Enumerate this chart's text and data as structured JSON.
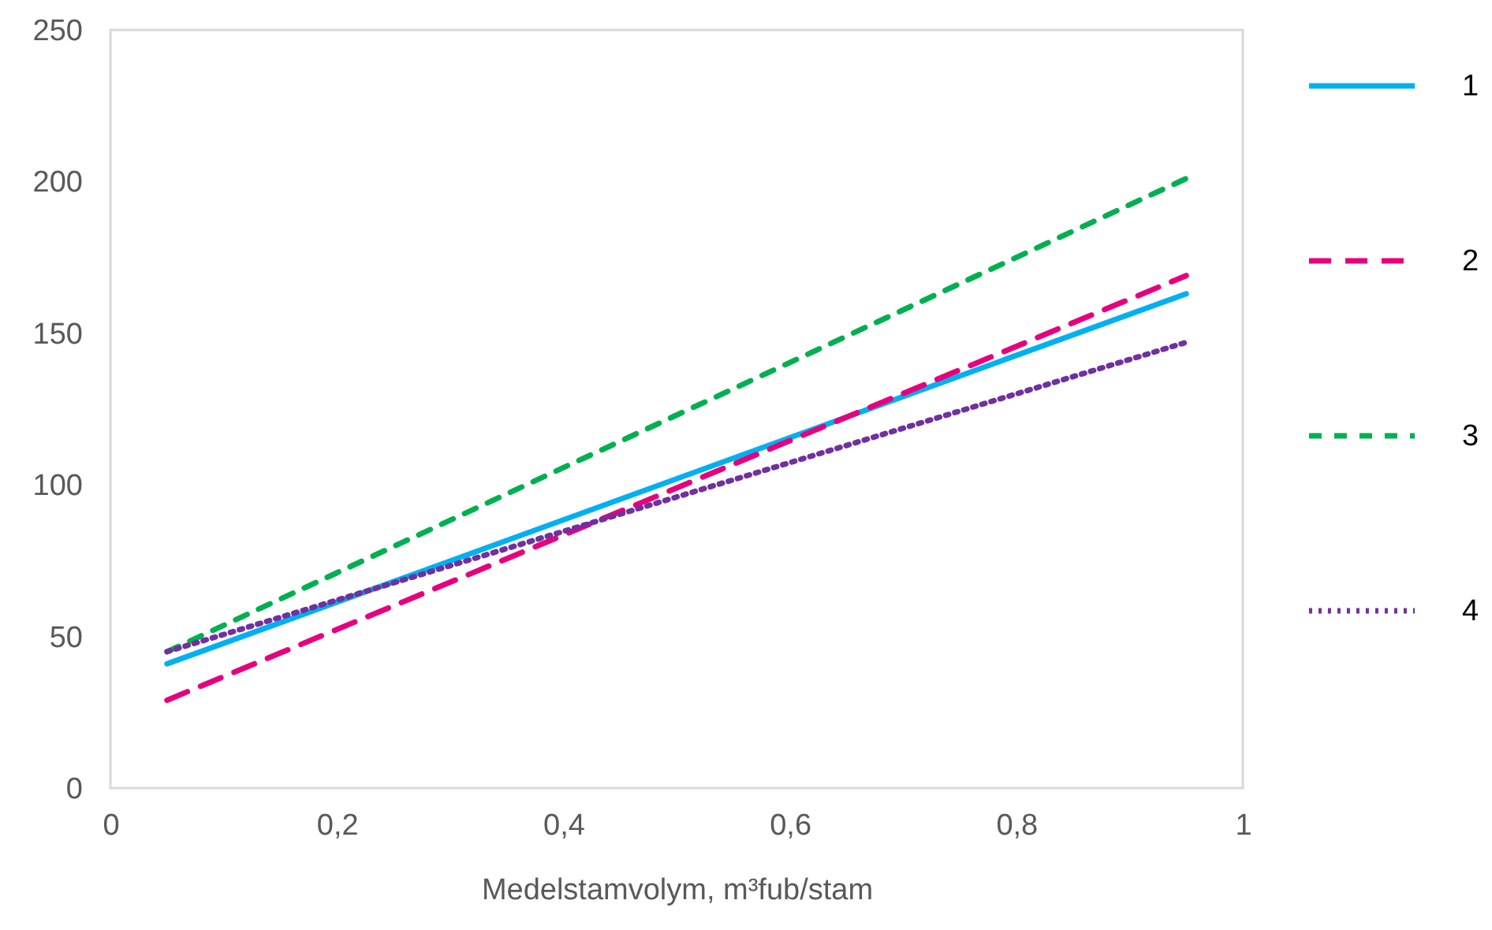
{
  "chart_data": {
    "type": "line",
    "xlabel": "Medelstamvolym, m³fub/stam",
    "xlim": [
      0,
      1
    ],
    "xticks": [
      0,
      {
        "value": 0.2,
        "label": "0,2"
      },
      {
        "value": 0.4,
        "label": "0,4"
      },
      {
        "value": 0.6,
        "label": "0,6"
      },
      {
        "value": 0.8,
        "label": "0,8"
      },
      1
    ],
    "x": [
      0.05,
      0.95
    ],
    "ylim": [
      0,
      250
    ],
    "yticks": [
      0,
      50,
      100,
      150,
      200,
      250
    ],
    "grid": false,
    "legend": "right",
    "marker": "none",
    "series": [
      {
        "name": "1",
        "color": "#00b0f0",
        "line_style": "solid",
        "values": [
          41,
          163
        ]
      },
      {
        "name": "2",
        "color": "#e6007e",
        "line_style": "dashed",
        "values": [
          29,
          169
        ]
      },
      {
        "name": "3",
        "color": "#00b050",
        "line_style": "dashed",
        "values": [
          45,
          201
        ]
      },
      {
        "name": "4",
        "color": "#7030a0",
        "line_style": "dotted",
        "values": [
          45,
          147
        ]
      }
    ]
  }
}
